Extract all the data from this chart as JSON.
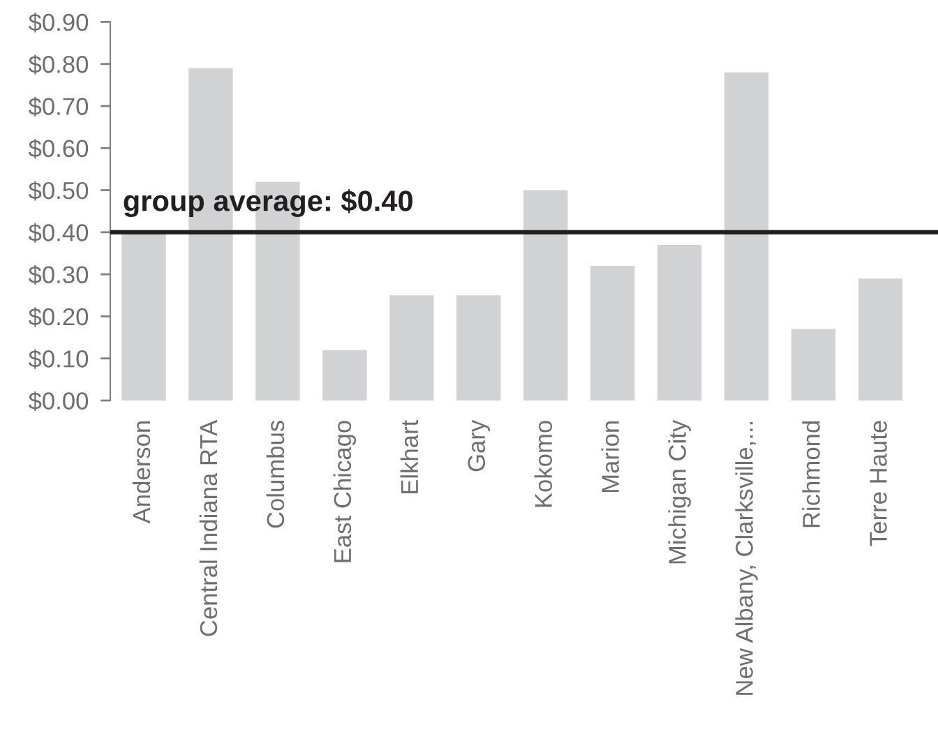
{
  "chart_data": {
    "type": "bar",
    "categories": [
      "Anderson",
      "Central Indiana RTA",
      "Columbus",
      "East Chicago",
      "Elkhart",
      "Gary",
      "Kokomo",
      "Marion",
      "Michigan City",
      "New Albany, Clarksville,...",
      "Richmond",
      "Terre Haute"
    ],
    "values": [
      0.4,
      0.79,
      0.52,
      0.12,
      0.25,
      0.25,
      0.5,
      0.32,
      0.37,
      0.78,
      0.17,
      0.29
    ],
    "color": "#d1d2d4",
    "ylim": [
      0,
      0.9
    ],
    "yticks": [
      {
        "value": 0,
        "label": "$0.00"
      },
      {
        "value": 0.1,
        "label": "$0.10"
      },
      {
        "value": 0.2,
        "label": "$0.20"
      },
      {
        "value": 0.3,
        "label": "$0.30"
      },
      {
        "value": 0.4,
        "label": "$0.40"
      },
      {
        "value": 0.5,
        "label": "$0.50"
      },
      {
        "value": 0.6,
        "label": "$0.60"
      },
      {
        "value": 0.7,
        "label": "$0.70"
      },
      {
        "value": 0.8,
        "label": "$0.80"
      },
      {
        "value": 0.9,
        "label": "$0.90"
      }
    ],
    "ref_lines": [
      {
        "axis": "y",
        "value": 0.4,
        "label": "group average: $0.40",
        "color": "#231f20"
      }
    ]
  }
}
